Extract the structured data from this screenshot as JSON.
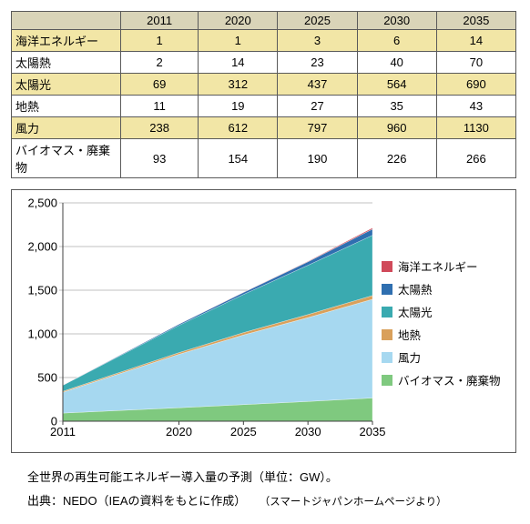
{
  "colors": {
    "table_border": "#5a5a5a",
    "table_header_bg": "#d9d4b8",
    "table_alt_bg": "#f2e6a6",
    "chart_bg": "#ffffff",
    "grid": "#c0c0c0",
    "axis": "#404040"
  },
  "table": {
    "years": [
      "2011",
      "2020",
      "2025",
      "2030",
      "2035"
    ],
    "rows": [
      {
        "label": "海洋エネルギー",
        "vals": [
          "1",
          "1",
          "3",
          "6",
          "14"
        ]
      },
      {
        "label": "太陽熱",
        "vals": [
          "2",
          "14",
          "23",
          "40",
          "70"
        ]
      },
      {
        "label": "太陽光",
        "vals": [
          "69",
          "312",
          "437",
          "564",
          "690"
        ]
      },
      {
        "label": "地熱",
        "vals": [
          "11",
          "19",
          "27",
          "35",
          "43"
        ]
      },
      {
        "label": "風力",
        "vals": [
          "238",
          "612",
          "797",
          "960",
          "1130"
        ]
      },
      {
        "label": "バイオマス・廃棄物",
        "vals": [
          "93",
          "154",
          "190",
          "226",
          "266"
        ]
      }
    ]
  },
  "chart": {
    "type": "area-stacked",
    "x_labels": [
      "2011",
      "2020",
      "2025",
      "2030",
      "2035"
    ],
    "x_positions": [
      0,
      9,
      14,
      19,
      24
    ],
    "x_range": [
      0,
      24
    ],
    "y_ticks": [
      0,
      500,
      1000,
      1500,
      2000,
      2500
    ],
    "y_range": [
      0,
      2500
    ],
    "series": [
      {
        "key": "biomass",
        "label": "バイオマス・廃棄物",
        "color": "#7fc97f",
        "cum": [
          93,
          154,
          190,
          226,
          266
        ]
      },
      {
        "key": "wind",
        "label": "風力",
        "color": "#a6d8f0",
        "cum": [
          331,
          766,
          987,
          1186,
          1396
        ]
      },
      {
        "key": "geo",
        "label": "地熱",
        "color": "#d9a05b",
        "cum": [
          342,
          785,
          1014,
          1221,
          1439
        ]
      },
      {
        "key": "pv",
        "label": "太陽光",
        "color": "#3aaab0",
        "cum": [
          411,
          1097,
          1451,
          1785,
          2129
        ]
      },
      {
        "key": "solth",
        "label": "太陽熱",
        "color": "#2f6fb0",
        "cum": [
          413,
          1111,
          1474,
          1825,
          2199
        ]
      },
      {
        "key": "ocean",
        "label": "海洋エネルギー",
        "color": "#d04a5a",
        "cum": [
          414,
          1112,
          1477,
          1831,
          2213
        ]
      }
    ],
    "legend_order": [
      "ocean",
      "solth",
      "pv",
      "geo",
      "wind",
      "biomass"
    ],
    "tick_fontsize": 13
  },
  "caption": {
    "line1": "全世界の再生可能エネルギー導入量の予測（単位：GW）。",
    "line2a": "出典：NEDO（IEAの資料をもとに作成）",
    "line2b": "（スマートジャパンホームページより）"
  }
}
